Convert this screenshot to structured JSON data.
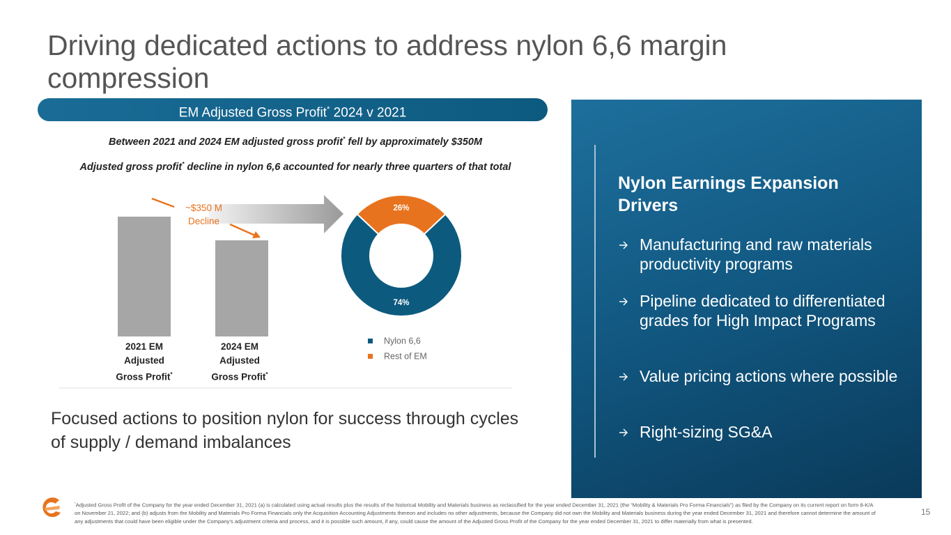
{
  "title": "Driving dedicated actions to address nylon 6,6 margin compression",
  "banner": [
    "EM Adjusted Gross Profit",
    "*",
    " 2024 v 2021"
  ],
  "statement_1": [
    "Between 2021 and 2024 EM adjusted gross profit",
    "*",
    " fell by approximately $350M"
  ],
  "statement_2": [
    "Adjusted gross profit",
    "*",
    " decline in nylon 6,6 accounted for nearly three quarters of that total"
  ],
  "bar_labels": [
    [
      "2021 EM",
      "Adjusted",
      "Gross Profit",
      "*"
    ],
    [
      "2024 EM",
      "Adjusted",
      "Gross Profit",
      "*"
    ]
  ],
  "annotation": [
    "~$350 M",
    "Decline"
  ],
  "chart_data": {
    "type": "donut",
    "categories": [
      "Nylon 6,6",
      "Rest of EM"
    ],
    "values": [
      74,
      26
    ],
    "value_labels": [
      "74%",
      "26%"
    ],
    "colors": [
      "#0d5a7f",
      "#e8731e"
    ]
  },
  "body_text": "Focused actions to position nylon for success through cycles of supply / demand imbalances",
  "panel": {
    "title": "Nylon Earnings Expansion Drivers",
    "bullets": [
      "Manufacturing and raw materials productivity programs",
      "Pipeline dedicated to differentiated grades for High Impact Programs",
      "Value pricing actions where possible",
      "Right-sizing SG&A"
    ]
  },
  "footnote": [
    "*",
    "Adjusted Gross Profit of the Company for the year ended December 31, 2021 (a) is calculated using actual results plus the results of the historical Mobility and Materials business as reclassified for the year ended December 31, 2021 (the “Mobility & Materials Pro Forma Financials”) as filed by the Company on its current report on form 8-K/A on November 21, 2022; and (b) adjusts from the Mobility and Materials Pro Forma Financials only the Acquisition Accounting Adjustments thereon and includes no other adjustments, because the Company did not own the Mobility and Materials business during the year ended December 31, 2021 and therefore cannot determine the amount of any adjustments that could have been eligible under the Company's adjustment criteria and process, and it is possible such amount, if any, could cause the amount of the Adjusted Gross Profit of the Company for the year ended December 31, 2021 to differ materially from what is presented."
  ],
  "page_number": "15"
}
